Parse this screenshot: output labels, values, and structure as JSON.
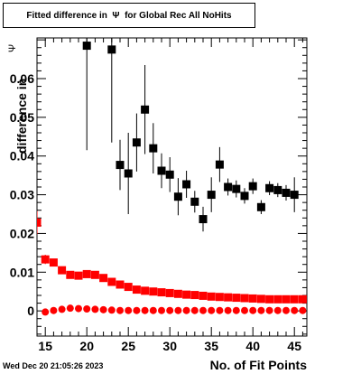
{
  "title": "Fitted difference in  Ψ  for Global Rec All NoHits",
  "footer": {
    "date": "Wed Dec 20 21:05:26 2023"
  },
  "chart_data": {
    "type": "scatter",
    "title": "Fitted difference in  Ψ  for Global Rec All NoHits",
    "xlabel": "No. of Fit Points",
    "ylabel": "difference in",
    "ylabel_symbol": "Ψ",
    "xlim": [
      14,
      46.5
    ],
    "ylim": [
      -0.0065,
      0.0705
    ],
    "x_ticks": [
      15,
      20,
      25,
      30,
      35,
      40,
      45
    ],
    "y_ticks": [
      0,
      0.01,
      0.02,
      0.03,
      0.04,
      0.05,
      0.06
    ],
    "y_tick_labels": [
      "0",
      "0.01",
      "0.02",
      "0.03",
      "0.04",
      "0.05",
      "0.06"
    ],
    "series": [
      {
        "marker": "square",
        "color": "#000000",
        "points": [
          {
            "x": 20,
            "y": 0.0685,
            "err": 0.027
          },
          {
            "x": 23,
            "y": 0.0675,
            "err": 0.024
          },
          {
            "x": 24,
            "y": 0.0377,
            "err": 0.0065
          },
          {
            "x": 25,
            "y": 0.0355,
            "err": 0.0105
          },
          {
            "x": 26,
            "y": 0.0435,
            "err": 0.0075
          },
          {
            "x": 27,
            "y": 0.052,
            "err": 0.0115
          },
          {
            "x": 28,
            "y": 0.042,
            "err": 0.0065
          },
          {
            "x": 29,
            "y": 0.0362,
            "err": 0.0045
          },
          {
            "x": 30,
            "y": 0.0352,
            "err": 0.0045
          },
          {
            "x": 31,
            "y": 0.0295,
            "err": 0.0048
          },
          {
            "x": 32,
            "y": 0.0327,
            "err": 0.0035
          },
          {
            "x": 33,
            "y": 0.0282,
            "err": 0.0028
          },
          {
            "x": 34,
            "y": 0.0237,
            "err": 0.0032
          },
          {
            "x": 35,
            "y": 0.03,
            "err": 0.0045
          },
          {
            "x": 36,
            "y": 0.0378,
            "err": 0.0045
          },
          {
            "x": 37,
            "y": 0.032,
            "err": 0.0022
          },
          {
            "x": 38,
            "y": 0.0315,
            "err": 0.0022
          },
          {
            "x": 39,
            "y": 0.0297,
            "err": 0.002
          },
          {
            "x": 40,
            "y": 0.0322,
            "err": 0.002
          },
          {
            "x": 41,
            "y": 0.0268,
            "err": 0.0018
          },
          {
            "x": 42,
            "y": 0.0317,
            "err": 0.0018
          },
          {
            "x": 43,
            "y": 0.0312,
            "err": 0.0018
          },
          {
            "x": 44,
            "y": 0.0305,
            "err": 0.002
          },
          {
            "x": 45,
            "y": 0.03,
            "err": 0.0045
          }
        ]
      },
      {
        "marker": "square",
        "color": "#ff0000",
        "points": [
          {
            "x": 14,
            "y": 0.0228,
            "err": 0.003
          },
          {
            "x": 15,
            "y": 0.0133,
            "err": 0.0012
          },
          {
            "x": 16,
            "y": 0.0125,
            "err": 0.0008
          },
          {
            "x": 17,
            "y": 0.0105,
            "err": 0.0006
          },
          {
            "x": 18,
            "y": 0.0093,
            "err": 0.0005
          },
          {
            "x": 19,
            "y": 0.0091,
            "err": 0.0004
          },
          {
            "x": 20,
            "y": 0.0095,
            "err": 0.0004
          },
          {
            "x": 21,
            "y": 0.0093,
            "err": 0.0003
          },
          {
            "x": 22,
            "y": 0.0085,
            "err": 0.0003
          },
          {
            "x": 23,
            "y": 0.0075,
            "err": 0.0003
          },
          {
            "x": 24,
            "y": 0.0068,
            "err": 0.0002
          },
          {
            "x": 25,
            "y": 0.0062,
            "err": 0.0002
          },
          {
            "x": 26,
            "y": 0.0055,
            "err": 0.0002
          },
          {
            "x": 27,
            "y": 0.0052,
            "err": 0.0002
          },
          {
            "x": 28,
            "y": 0.005,
            "err": 0.0002
          },
          {
            "x": 29,
            "y": 0.0048,
            "err": 0.0002
          },
          {
            "x": 30,
            "y": 0.0046,
            "err": 0.0002
          },
          {
            "x": 31,
            "y": 0.0044,
            "err": 0.0002
          },
          {
            "x": 32,
            "y": 0.0042,
            "err": 0.0002
          },
          {
            "x": 33,
            "y": 0.0041,
            "err": 0.0002
          },
          {
            "x": 34,
            "y": 0.0039,
            "err": 0.0002
          },
          {
            "x": 35,
            "y": 0.0037,
            "err": 0.0002
          },
          {
            "x": 36,
            "y": 0.0036,
            "err": 0.0002
          },
          {
            "x": 37,
            "y": 0.0035,
            "err": 0.0002
          },
          {
            "x": 38,
            "y": 0.0034,
            "err": 0.0002
          },
          {
            "x": 39,
            "y": 0.0033,
            "err": 0.0002
          },
          {
            "x": 40,
            "y": 0.0032,
            "err": 0.0002
          },
          {
            "x": 41,
            "y": 0.0031,
            "err": 0.0002
          },
          {
            "x": 42,
            "y": 0.003,
            "err": 0.0002
          },
          {
            "x": 43,
            "y": 0.003,
            "err": 0.0002
          },
          {
            "x": 44,
            "y": 0.003,
            "err": 0.0002
          },
          {
            "x": 45,
            "y": 0.003,
            "err": 0.0002
          },
          {
            "x": 46,
            "y": 0.003,
            "err": 0.0002
          }
        ]
      },
      {
        "marker": "circle",
        "color": "#ff0000",
        "points": [
          {
            "x": 15,
            "y": -0.0003
          },
          {
            "x": 16,
            "y": 0.0001
          },
          {
            "x": 17,
            "y": 0.0004
          },
          {
            "x": 18,
            "y": 0.0007
          },
          {
            "x": 19,
            "y": 0.0006
          },
          {
            "x": 20,
            "y": 0.0005
          },
          {
            "x": 21,
            "y": 0.0004
          },
          {
            "x": 22,
            "y": 0.0003
          },
          {
            "x": 23,
            "y": 0.0002
          },
          {
            "x": 24,
            "y": 0.0001
          },
          {
            "x": 25,
            "y": 0.0001
          },
          {
            "x": 26,
            "y": 0.0001
          },
          {
            "x": 27,
            "y": 0.0001
          },
          {
            "x": 28,
            "y": 0.0001
          },
          {
            "x": 29,
            "y": 0.0001
          },
          {
            "x": 30,
            "y": 0.0001
          },
          {
            "x": 31,
            "y": 0.0001
          },
          {
            "x": 32,
            "y": 0.0001
          },
          {
            "x": 33,
            "y": 0.0001
          },
          {
            "x": 34,
            "y": 0.0001
          },
          {
            "x": 35,
            "y": 0.0001
          },
          {
            "x": 36,
            "y": 0.0001
          },
          {
            "x": 37,
            "y": 0.0001
          },
          {
            "x": 38,
            "y": 0.0001
          },
          {
            "x": 39,
            "y": 0.0001
          },
          {
            "x": 40,
            "y": 0.0001
          },
          {
            "x": 41,
            "y": 0.0001
          },
          {
            "x": 42,
            "y": 0.0001
          },
          {
            "x": 43,
            "y": 0.0001
          },
          {
            "x": 44,
            "y": 0.0001
          },
          {
            "x": 45,
            "y": 0.0001
          },
          {
            "x": 46,
            "y": 0.0001
          }
        ]
      }
    ]
  }
}
